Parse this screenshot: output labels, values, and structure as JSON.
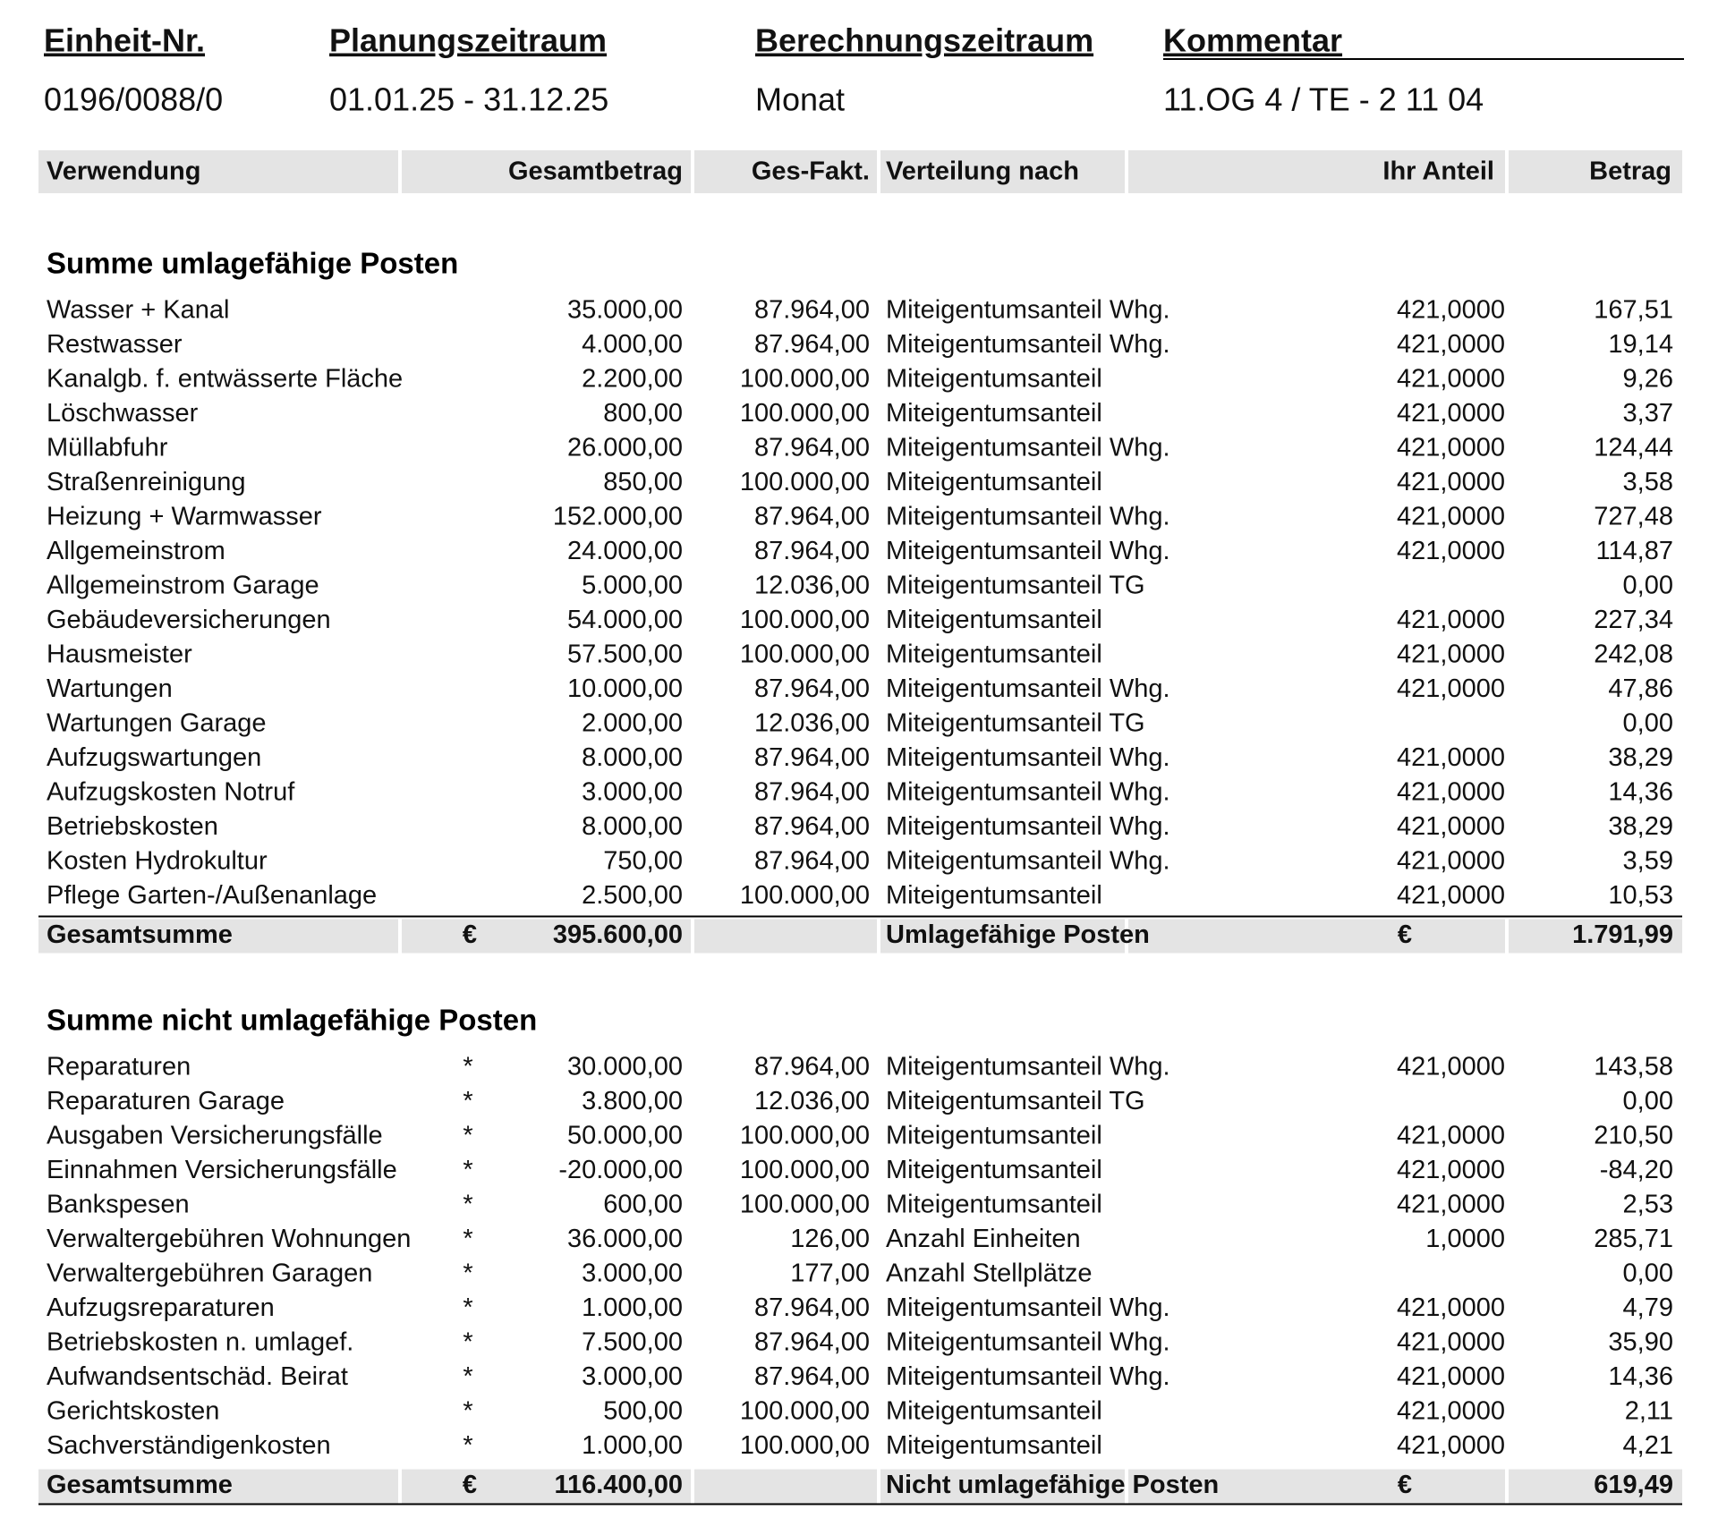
{
  "header": [
    {
      "label": "Einheit-Nr.",
      "value": "0196/0088/0"
    },
    {
      "label": "Planungszeitraum",
      "value": "01.01.25 - 31.12.25"
    },
    {
      "label": "Berechnungszeitraum",
      "value": "Monat"
    },
    {
      "label": "Kommentar",
      "value": "11.OG 4 / TE - 2 11 04"
    }
  ],
  "table": {
    "columns": [
      "Verwendung",
      "Gesamtbetrag",
      "Ges-Fakt.",
      "Verteilung nach",
      "Ihr Anteil",
      "Betrag"
    ],
    "sections": [
      {
        "title": "Summe umlagefähige Posten",
        "rows": [
          {
            "name": "Wasser + Kanal",
            "amount": "35.000,00",
            "factor": "87.964,00",
            "distribution": "Miteigentumsanteil Whg.",
            "share": "421,0000",
            "total": "167,51"
          },
          {
            "name": "Restwasser",
            "amount": "4.000,00",
            "factor": "87.964,00",
            "distribution": "Miteigentumsanteil Whg.",
            "share": "421,0000",
            "total": "19,14"
          },
          {
            "name": "Kanalgb. f. entwässerte Fläche",
            "amount": "2.200,00",
            "factor": "100.000,00",
            "distribution": "Miteigentumsanteil",
            "share": "421,0000",
            "total": "9,26"
          },
          {
            "name": "Löschwasser",
            "amount": "800,00",
            "factor": "100.000,00",
            "distribution": "Miteigentumsanteil",
            "share": "421,0000",
            "total": "3,37"
          },
          {
            "name": "Müllabfuhr",
            "amount": "26.000,00",
            "factor": "87.964,00",
            "distribution": "Miteigentumsanteil Whg.",
            "share": "421,0000",
            "total": "124,44"
          },
          {
            "name": "Straßenreinigung",
            "amount": "850,00",
            "factor": "100.000,00",
            "distribution": "Miteigentumsanteil",
            "share": "421,0000",
            "total": "3,58"
          },
          {
            "name": "Heizung + Warmwasser",
            "amount": "152.000,00",
            "factor": "87.964,00",
            "distribution": "Miteigentumsanteil Whg.",
            "share": "421,0000",
            "total": "727,48"
          },
          {
            "name": "Allgemeinstrom",
            "amount": "24.000,00",
            "factor": "87.964,00",
            "distribution": "Miteigentumsanteil Whg.",
            "share": "421,0000",
            "total": "114,87"
          },
          {
            "name": "Allgemeinstrom Garage",
            "amount": "5.000,00",
            "factor": "12.036,00",
            "distribution": "Miteigentumsanteil TG",
            "total": "0,00"
          },
          {
            "name": "Gebäudeversicherungen",
            "amount": "54.000,00",
            "factor": "100.000,00",
            "distribution": "Miteigentumsanteil",
            "share": "421,0000",
            "total": "227,34"
          },
          {
            "name": "Hausmeister",
            "amount": "57.500,00",
            "factor": "100.000,00",
            "distribution": "Miteigentumsanteil",
            "share": "421,0000",
            "total": "242,08"
          },
          {
            "name": "Wartungen",
            "amount": "10.000,00",
            "factor": "87.964,00",
            "distribution": "Miteigentumsanteil Whg.",
            "share": "421,0000",
            "total": "47,86"
          },
          {
            "name": "Wartungen Garage",
            "amount": "2.000,00",
            "factor": "12.036,00",
            "distribution": "Miteigentumsanteil TG",
            "total": "0,00"
          },
          {
            "name": "Aufzugswartungen",
            "amount": "8.000,00",
            "factor": "87.964,00",
            "distribution": "Miteigentumsanteil Whg.",
            "share": "421,0000",
            "total": "38,29"
          },
          {
            "name": "Aufzugskosten Notruf",
            "amount": "3.000,00",
            "factor": "87.964,00",
            "distribution": "Miteigentumsanteil Whg.",
            "share": "421,0000",
            "total": "14,36"
          },
          {
            "name": "Betriebskosten",
            "amount": "8.000,00",
            "factor": "87.964,00",
            "distribution": "Miteigentumsanteil Whg.",
            "share": "421,0000",
            "total": "38,29"
          },
          {
            "name": "Kosten Hydrokultur",
            "amount": "750,00",
            "factor": "87.964,00",
            "distribution": "Miteigentumsanteil Whg.",
            "share": "421,0000",
            "total": "3,59"
          },
          {
            "name": "Pflege Garten-/Außenanlage",
            "amount": "2.500,00",
            "factor": "100.000,00",
            "distribution": "Miteigentumsanteil",
            "share": "421,0000",
            "total": "10,53"
          }
        ],
        "sum": {
          "label": "Gesamtsumme",
          "currency": "€",
          "amount": "395.600,00",
          "caption": "Umlagefähige Posten",
          "currency2": "€",
          "total": "1.791,99"
        }
      },
      {
        "title": "Summe nicht umlagefähige Posten",
        "rows": [
          {
            "name": "Reparaturen",
            "mark": "*",
            "amount": "30.000,00",
            "factor": "87.964,00",
            "distribution": "Miteigentumsanteil Whg.",
            "share": "421,0000",
            "total": "143,58"
          },
          {
            "name": "Reparaturen Garage",
            "mark": "*",
            "amount": "3.800,00",
            "factor": "12.036,00",
            "distribution": "Miteigentumsanteil TG",
            "total": "0,00"
          },
          {
            "name": "Ausgaben Versicherungsfälle",
            "mark": "*",
            "amount": "50.000,00",
            "factor": "100.000,00",
            "distribution": "Miteigentumsanteil",
            "share": "421,0000",
            "total": "210,50"
          },
          {
            "name": "Einnahmen Versicherungsfälle",
            "mark": "*",
            "amount": "-20.000,00",
            "factor": "100.000,00",
            "distribution": "Miteigentumsanteil",
            "share": "421,0000",
            "total": "-84,20"
          },
          {
            "name": "Bankspesen",
            "mark": "*",
            "amount": "600,00",
            "factor": "100.000,00",
            "distribution": "Miteigentumsanteil",
            "share": "421,0000",
            "total": "2,53"
          },
          {
            "name": "Verwaltergebühren Wohnungen",
            "mark": "*",
            "amount": "36.000,00",
            "factor": "126,00",
            "distribution": "Anzahl Einheiten",
            "share": "1,0000",
            "total": "285,71"
          },
          {
            "name": "Verwaltergebühren Garagen",
            "mark": "*",
            "amount": "3.000,00",
            "factor": "177,00",
            "distribution": "Anzahl Stellplätze",
            "total": "0,00"
          },
          {
            "name": "Aufzugsreparaturen",
            "mark": "*",
            "amount": "1.000,00",
            "factor": "87.964,00",
            "distribution": "Miteigentumsanteil Whg.",
            "share": "421,0000",
            "total": "4,79"
          },
          {
            "name": "Betriebskosten n. umlagef.",
            "mark": "*",
            "amount": "7.500,00",
            "factor": "87.964,00",
            "distribution": "Miteigentumsanteil Whg.",
            "share": "421,0000",
            "total": "35,90"
          },
          {
            "name": "Aufwandsentschäd. Beirat",
            "mark": "*",
            "amount": "3.000,00",
            "factor": "87.964,00",
            "distribution": "Miteigentumsanteil Whg.",
            "share": "421,0000",
            "total": "14,36"
          },
          {
            "name": "Gerichtskosten",
            "mark": "*",
            "amount": "500,00",
            "factor": "100.000,00",
            "distribution": "Miteigentumsanteil",
            "share": "421,0000",
            "total": "2,11"
          },
          {
            "name": "Sachverständigenkosten",
            "mark": "*",
            "amount": "1.000,00",
            "factor": "100.000,00",
            "distribution": "Miteigentumsanteil",
            "share": "421,0000",
            "total": "4,21"
          }
        ],
        "sum": {
          "label": "Gesamtsumme",
          "currency": "€",
          "amount": "116.400,00",
          "caption": "Nicht umlagefähige Posten",
          "currency2": "€",
          "total": "619,49"
        }
      }
    ]
  }
}
